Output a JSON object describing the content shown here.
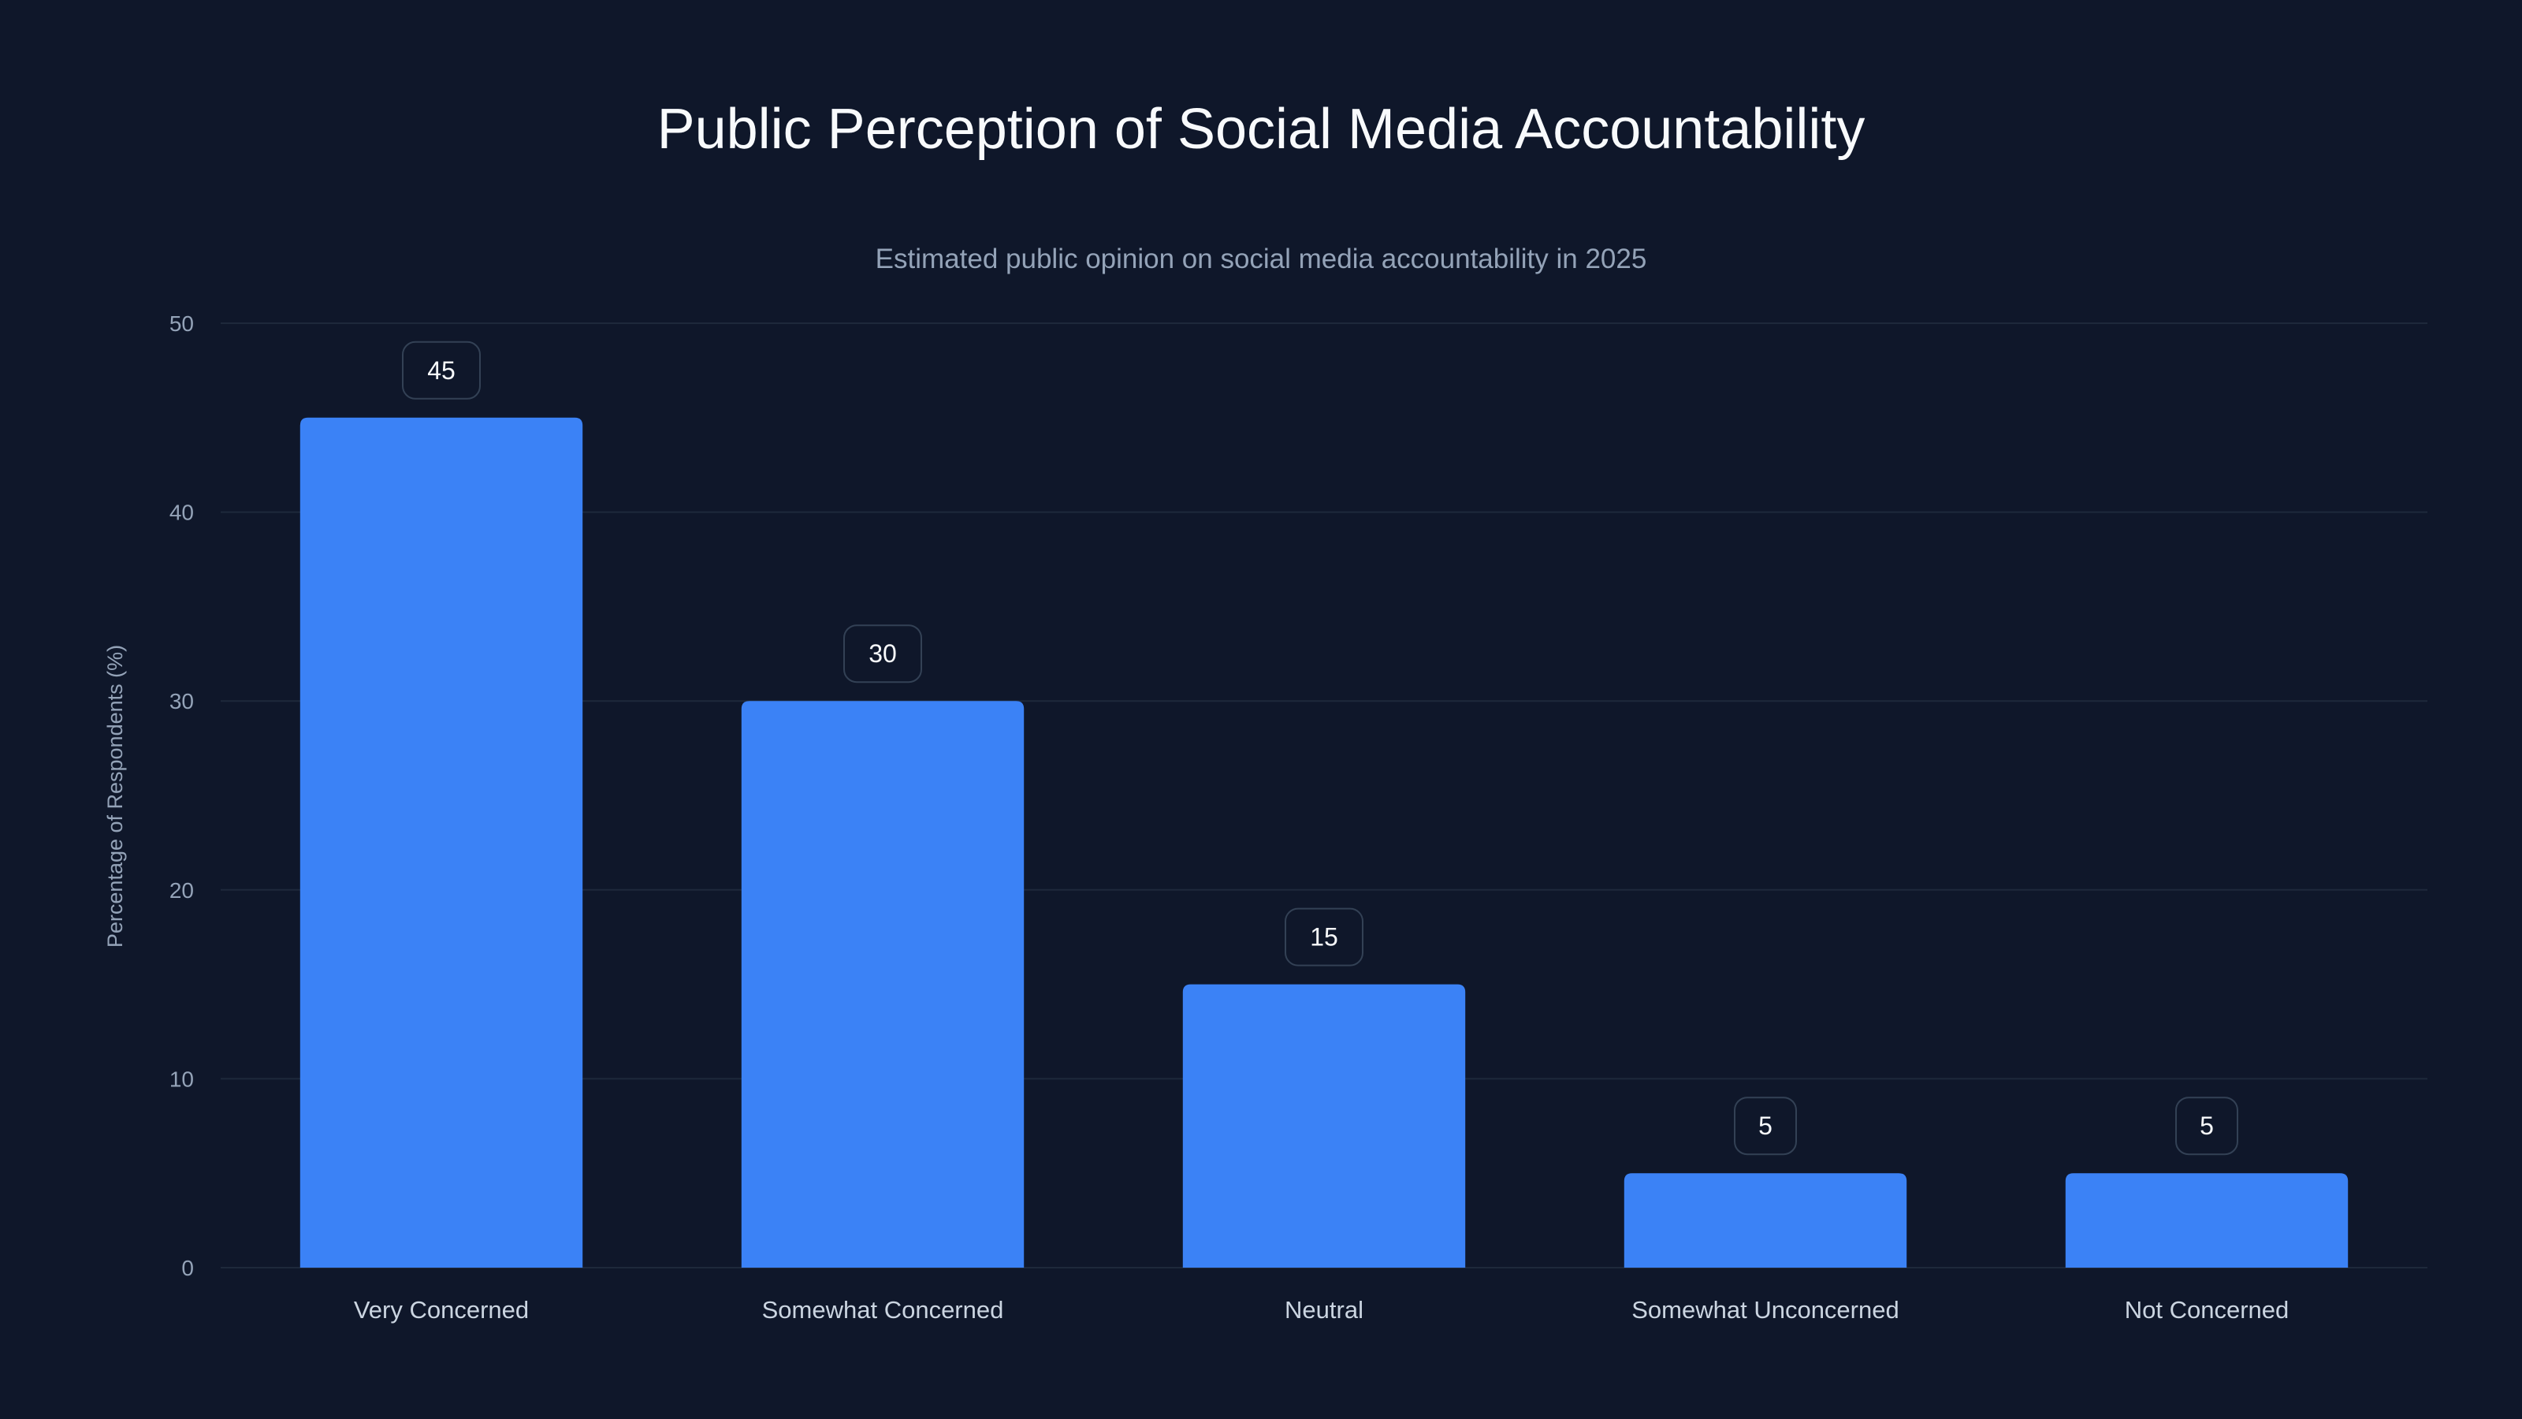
{
  "chart_data": {
    "type": "bar",
    "title": "Public Perception of Social Media Accountability",
    "subtitle": "Estimated public opinion on social media accountability in 2025",
    "xlabel": "",
    "ylabel": "Percentage of Respondents (%)",
    "categories": [
      "Very Concerned",
      "Somewhat Concerned",
      "Neutral",
      "Somewhat Unconcerned",
      "Not Concerned"
    ],
    "values": [
      45,
      30,
      15,
      5,
      5
    ],
    "ylim": [
      0,
      50
    ],
    "yticks": [
      0,
      10,
      20,
      30,
      40,
      50
    ],
    "grid": true,
    "legend": "none",
    "colors": {
      "background": "#0f172a",
      "bar": "#3b82f6",
      "grid": "#1e293b"
    }
  }
}
